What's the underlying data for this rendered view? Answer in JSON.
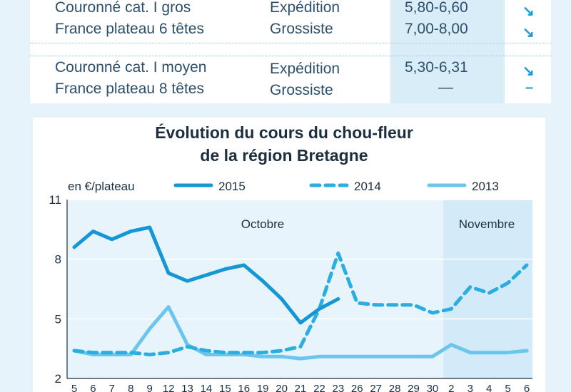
{
  "table": {
    "rows": [
      {
        "product": "Couronné cat. I gros",
        "market": "Expédition",
        "price": "5,80-6,60",
        "trend": "↘"
      },
      {
        "product": "France plateau 6 têtes",
        "market": "Grossiste",
        "price": "7,00-8,00",
        "trend": "↘"
      },
      {
        "product": "Couronné cat. I moyen",
        "market": "Expédition",
        "price": "5,30-6,31",
        "trend": "↘"
      },
      {
        "product": "France plateau 8 têtes",
        "market": "Grossiste",
        "price": "—",
        "trend": "–"
      }
    ]
  },
  "colors": {
    "s2015": "#1497d4",
    "s2014": "#2aaee0",
    "s2013": "#6cc5ec",
    "november_band": "#d3ebf8",
    "chart_bg": "#e8f4fb"
  },
  "chart_data": {
    "type": "line",
    "title_line1": "Évolution du cours du chou-fleur",
    "title_line2": "de la région Bretagne",
    "ylabel": "en €/plateau",
    "ylim": [
      2,
      11
    ],
    "yticks": [
      "11",
      "8",
      "5",
      "2"
    ],
    "month_labels": [
      "Octobre",
      "Novembre"
    ],
    "categories": [
      "5",
      "6",
      "7",
      "8",
      "9",
      "12",
      "13",
      "14",
      "15",
      "16",
      "19",
      "20",
      "21",
      "22",
      "23",
      "26",
      "27",
      "28",
      "29",
      "30",
      "2",
      "3",
      "4",
      "5",
      "6"
    ],
    "series": [
      {
        "name": "2015",
        "style": "solid",
        "values": [
          8.6,
          9.4,
          9.0,
          9.4,
          9.6,
          7.3,
          6.9,
          7.2,
          7.5,
          7.7,
          6.9,
          6.0,
          4.8,
          5.5,
          6.0,
          null,
          null,
          null,
          null,
          null,
          null,
          null,
          null,
          null,
          null
        ]
      },
      {
        "name": "2014",
        "style": "dashed",
        "values": [
          3.4,
          3.3,
          3.3,
          3.3,
          3.2,
          3.3,
          3.6,
          3.4,
          3.3,
          3.3,
          3.3,
          3.4,
          3.6,
          5.5,
          8.3,
          5.8,
          5.7,
          5.7,
          5.7,
          5.3,
          5.5,
          6.6,
          6.3,
          6.8,
          7.7
        ]
      },
      {
        "name": "2013",
        "style": "solid",
        "values": [
          3.4,
          3.2,
          3.2,
          3.2,
          4.5,
          5.6,
          3.7,
          3.2,
          3.2,
          3.2,
          3.1,
          3.1,
          3.0,
          3.1,
          3.1,
          3.1,
          3.1,
          3.1,
          3.1,
          3.1,
          3.7,
          3.3,
          3.3,
          3.3,
          3.4
        ]
      }
    ]
  }
}
